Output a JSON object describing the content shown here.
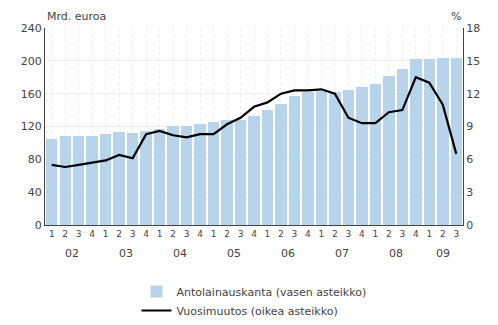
{
  "chart_data": {
    "type": "bar",
    "categories": [
      "1",
      "2",
      "3",
      "4",
      "1",
      "2",
      "3",
      "4",
      "1",
      "2",
      "3",
      "4",
      "1",
      "2",
      "3",
      "4",
      "1",
      "2",
      "3",
      "4",
      "1",
      "2",
      "3",
      "4",
      "1",
      "2",
      "3",
      "4",
      "1",
      "2",
      "3"
    ],
    "series": [
      {
        "name": "Antolainauskanta (vasen asteikko)",
        "type": "bar",
        "color": "#b8d4ea",
        "values": [
          105,
          108,
          108,
          109,
          111,
          113,
          112,
          114,
          117,
          121,
          121,
          123,
          126,
          128,
          128,
          133,
          140,
          148,
          157,
          162,
          163,
          162,
          165,
          168,
          172,
          182,
          190,
          202,
          202,
          204,
          203
        ]
      },
      {
        "name": "Vuosimuutos (oikea asteikko)",
        "type": "line",
        "color": "#000000",
        "axis": "y2",
        "values": [
          5.5,
          5.3,
          5.5,
          5.7,
          5.9,
          6.4,
          6.1,
          8.3,
          8.6,
          8.2,
          8.0,
          8.3,
          8.3,
          9.2,
          9.8,
          10.8,
          11.2,
          12.0,
          12.3,
          12.3,
          12.4,
          12.0,
          9.8,
          9.3,
          9.3,
          10.3,
          10.5,
          13.5,
          13.0,
          11.0,
          6.5
        ]
      }
    ],
    "ylabel": "Mrd. euroa",
    "y2label": "%",
    "ylim": [
      0,
      240
    ],
    "yticks": [
      0,
      40,
      80,
      120,
      160,
      200,
      240
    ],
    "y2lim": [
      0,
      18
    ],
    "y2ticks": [
      0,
      3,
      6,
      9,
      12,
      15,
      18
    ],
    "annotations": [
      "02",
      "03",
      "04",
      "05",
      "06",
      "07",
      "08",
      "09"
    ],
    "grid": true,
    "legend": "bottom"
  }
}
